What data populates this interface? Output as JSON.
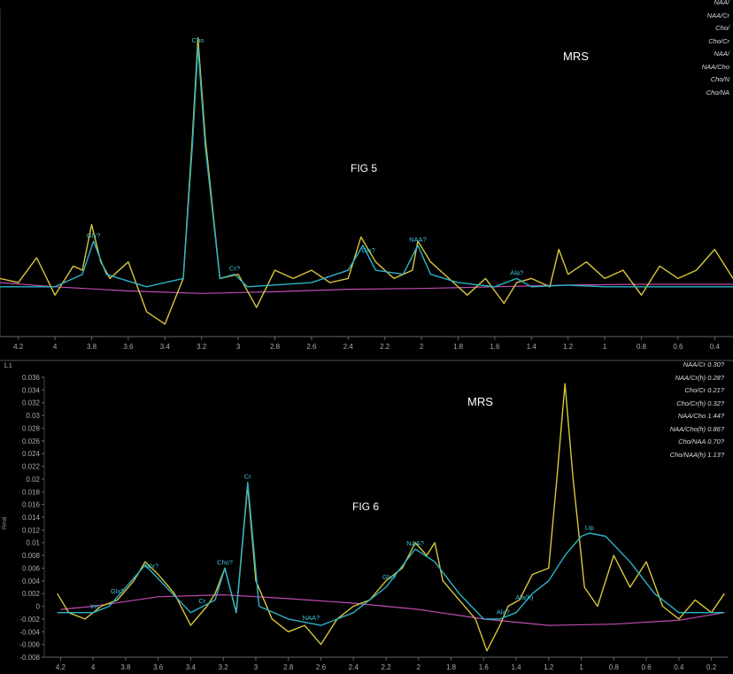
{
  "panels": [
    {
      "id": "fig5",
      "title": "MRS",
      "figure_label": "FIG 5",
      "x_ticks": [
        "4.2",
        "4",
        "3.8",
        "3.6",
        "3.4",
        "3.2",
        "3",
        "2.8",
        "2.6",
        "2.4",
        "2.2",
        "2",
        "1.8",
        "1.6",
        "1.4",
        "1.2",
        "1",
        "0.8",
        "0.6",
        "0.4"
      ],
      "y_ticks": [],
      "ratio_labels": [
        "NAA/",
        "NAA/Cr",
        "Cho/",
        "Cho/Cr",
        "NAA/",
        "NAA/Cho",
        "Cho/N",
        "Cho/NA"
      ],
      "peak_labels": [
        {
          "text": "Cho",
          "x": 3.22
        },
        {
          "text": "Glx?",
          "x": 3.79
        },
        {
          "text": "Cr?",
          "x": 3.02
        },
        {
          "text": "Glx?",
          "x": 2.29
        },
        {
          "text": "NAA?",
          "x": 2.02
        },
        {
          "text": "Ala?",
          "x": 1.48
        }
      ]
    },
    {
      "id": "fig6",
      "title": "MRS",
      "figure_label": "FIG 6",
      "corner_label": "1,1",
      "y_axis_label": "Real",
      "x_ticks": [
        "4.2",
        "4",
        "3.8",
        "3.6",
        "3.4",
        "3.2",
        "3",
        "2.8",
        "2.6",
        "2.4",
        "2.2",
        "2",
        "1.8",
        "1.6",
        "1.4",
        "1.2",
        "1",
        "0.8",
        "0.6",
        "0.4",
        "0.2"
      ],
      "y_ticks": [
        "0.036",
        "0.034",
        "0.032",
        "0.03",
        "0.028",
        "0.026",
        "0.024",
        "0.022",
        "0.02",
        "0.018",
        "0.016",
        "0.014",
        "0.012",
        "0.01",
        "0.008",
        "0.006",
        "0.004",
        "0.002",
        "0",
        "-0.002",
        "-0.004",
        "-0.006",
        "-0.008"
      ],
      "ratio_labels": [
        "NAA/Cr  0.30?",
        "NAA/Cr(h)  0.28?",
        "Cho/Cr  0.21?",
        "Cho/Cr(h)  0.32?",
        "NAA/Cho  1.44?",
        "NAA/Cho(h)  0.86?",
        "Cho/NAA  0.70?",
        "Cho/NAA(h)  1.13?"
      ],
      "peak_labels": [
        {
          "text": "Cr",
          "x": 3.05
        },
        {
          "text": "Cho?",
          "x": 3.19
        },
        {
          "text": "NAA?",
          "x": 2.02
        },
        {
          "text": "Glx?",
          "x": 2.18
        },
        {
          "text": "Lip",
          "x": 0.95
        },
        {
          "text": "Ala?",
          "x": 1.48
        },
        {
          "text": "Ala(h)",
          "x": 1.35
        },
        {
          "text": "Glx?",
          "x": 3.64
        },
        {
          "text": "Glx?",
          "x": 3.85
        },
        {
          "text": "Ins",
          "x": 3.99
        },
        {
          "text": "Cr",
          "x": 3.33
        },
        {
          "text": "NAA?",
          "x": 2.66
        }
      ]
    }
  ],
  "chart_data": [
    {
      "type": "line",
      "title": "MRS",
      "xlabel": "",
      "ylabel": "",
      "x_reversed": true,
      "xlim": [
        4.3,
        0.3
      ],
      "series": [
        {
          "color": "#d9c63a",
          "x": [
            4.3,
            4.2,
            4.1,
            4.0,
            3.9,
            3.85,
            3.8,
            3.75,
            3.7,
            3.6,
            3.5,
            3.4,
            3.3,
            3.25,
            3.22,
            3.18,
            3.1,
            3.0,
            2.9,
            2.8,
            2.7,
            2.6,
            2.5,
            2.4,
            2.33,
            2.25,
            2.15,
            2.05,
            2.02,
            1.95,
            1.85,
            1.75,
            1.65,
            1.55,
            1.48,
            1.4,
            1.3,
            1.25,
            1.2,
            1.1,
            1.0,
            0.9,
            0.8,
            0.7,
            0.6,
            0.5,
            0.4,
            0.3
          ],
          "y": [
            0.1,
            0.05,
            0.35,
            -0.1,
            0.25,
            0.2,
            0.75,
            0.3,
            0.1,
            0.3,
            -0.3,
            -0.45,
            0.1,
            1.8,
            3.0,
            1.8,
            0.1,
            0.15,
            -0.25,
            0.2,
            0.1,
            0.2,
            0.05,
            0.1,
            0.6,
            0.3,
            0.1,
            0.2,
            0.55,
            0.3,
            0.1,
            -0.1,
            0.1,
            -0.2,
            0.05,
            0.1,
            0.0,
            0.45,
            0.15,
            0.3,
            0.1,
            0.2,
            -0.1,
            0.25,
            0.1,
            0.2,
            0.45,
            0.1
          ]
        },
        {
          "color": "#2bb3c8",
          "x": [
            4.3,
            4.0,
            3.85,
            3.79,
            3.72,
            3.5,
            3.3,
            3.25,
            3.22,
            3.18,
            3.1,
            3.02,
            2.95,
            2.6,
            2.4,
            2.32,
            2.25,
            2.1,
            2.02,
            1.95,
            1.8,
            1.6,
            1.48,
            1.4,
            1.2,
            1.0,
            0.6,
            0.3
          ],
          "y": [
            0.0,
            0.0,
            0.15,
            0.55,
            0.15,
            0.0,
            0.1,
            1.7,
            2.9,
            1.7,
            0.1,
            0.15,
            0.0,
            0.05,
            0.2,
            0.5,
            0.2,
            0.15,
            0.5,
            0.15,
            0.05,
            0.0,
            0.1,
            0.0,
            0.02,
            0.0,
            0.0,
            0.0
          ]
        },
        {
          "color": "#c04cb0",
          "x": [
            4.3,
            4.0,
            3.6,
            3.2,
            2.8,
            2.4,
            2.0,
            1.6,
            1.2,
            0.8,
            0.4,
            0.3
          ],
          "y": [
            0.05,
            0.0,
            -0.05,
            -0.08,
            -0.06,
            -0.03,
            -0.02,
            0.0,
            0.02,
            0.03,
            0.03,
            0.03
          ]
        }
      ]
    },
    {
      "type": "line",
      "title": "MRS",
      "xlabel": "",
      "ylabel": "Real",
      "x_reversed": true,
      "xlim": [
        4.3,
        0.1
      ],
      "ylim": [
        -0.008,
        0.036
      ],
      "series": [
        {
          "color": "#d9c63a",
          "x": [
            4.22,
            4.15,
            4.05,
            3.95,
            3.85,
            3.75,
            3.68,
            3.6,
            3.5,
            3.4,
            3.3,
            3.25,
            3.19,
            3.12,
            3.05,
            3.0,
            2.9,
            2.8,
            2.7,
            2.6,
            2.5,
            2.4,
            2.3,
            2.2,
            2.1,
            2.02,
            1.95,
            1.9,
            1.85,
            1.75,
            1.65,
            1.58,
            1.5,
            1.45,
            1.38,
            1.3,
            1.2,
            1.15,
            1.1,
            1.05,
            0.98,
            0.9,
            0.8,
            0.7,
            0.6,
            0.5,
            0.4,
            0.3,
            0.2,
            0.12
          ],
          "y": [
            0.002,
            -0.001,
            -0.002,
            0.0,
            0.001,
            0.004,
            0.007,
            0.005,
            0.002,
            -0.003,
            0.0,
            0.002,
            0.006,
            -0.001,
            0.019,
            0.004,
            -0.002,
            -0.004,
            -0.003,
            -0.006,
            -0.002,
            0.0,
            0.001,
            0.004,
            0.006,
            0.01,
            0.008,
            0.01,
            0.004,
            0.001,
            -0.002,
            -0.007,
            -0.003,
            0.0,
            0.001,
            0.005,
            0.006,
            0.02,
            0.035,
            0.02,
            0.003,
            0.0,
            0.008,
            0.003,
            0.007,
            0.0,
            -0.002,
            0.001,
            -0.001,
            0.002
          ]
        },
        {
          "color": "#2bb3c8",
          "x": [
            4.22,
            4.0,
            3.9,
            3.68,
            3.55,
            3.4,
            3.25,
            3.19,
            3.12,
            3.05,
            2.98,
            2.8,
            2.6,
            2.4,
            2.2,
            2.02,
            1.9,
            1.75,
            1.6,
            1.5,
            1.4,
            1.3,
            1.2,
            1.1,
            1.0,
            0.95,
            0.85,
            0.7,
            0.55,
            0.4,
            0.2,
            0.12
          ],
          "y": [
            -0.001,
            -0.001,
            0.0,
            0.0065,
            0.003,
            -0.001,
            0.001,
            0.006,
            -0.001,
            0.0195,
            0.0,
            -0.002,
            -0.003,
            -0.001,
            0.003,
            0.009,
            0.007,
            0.002,
            -0.002,
            -0.002,
            -0.001,
            0.002,
            0.004,
            0.008,
            0.011,
            0.0115,
            0.011,
            0.007,
            0.002,
            -0.001,
            -0.001,
            -0.001
          ]
        },
        {
          "color": "#c04cb0",
          "x": [
            4.2,
            4.0,
            3.6,
            3.2,
            2.8,
            2.4,
            2.0,
            1.6,
            1.2,
            0.8,
            0.4,
            0.12
          ],
          "y": [
            -0.0005,
            0.0,
            0.0015,
            0.0018,
            0.0012,
            0.0005,
            -0.0005,
            -0.002,
            -0.003,
            -0.0028,
            -0.0022,
            -0.001
          ]
        }
      ]
    }
  ]
}
